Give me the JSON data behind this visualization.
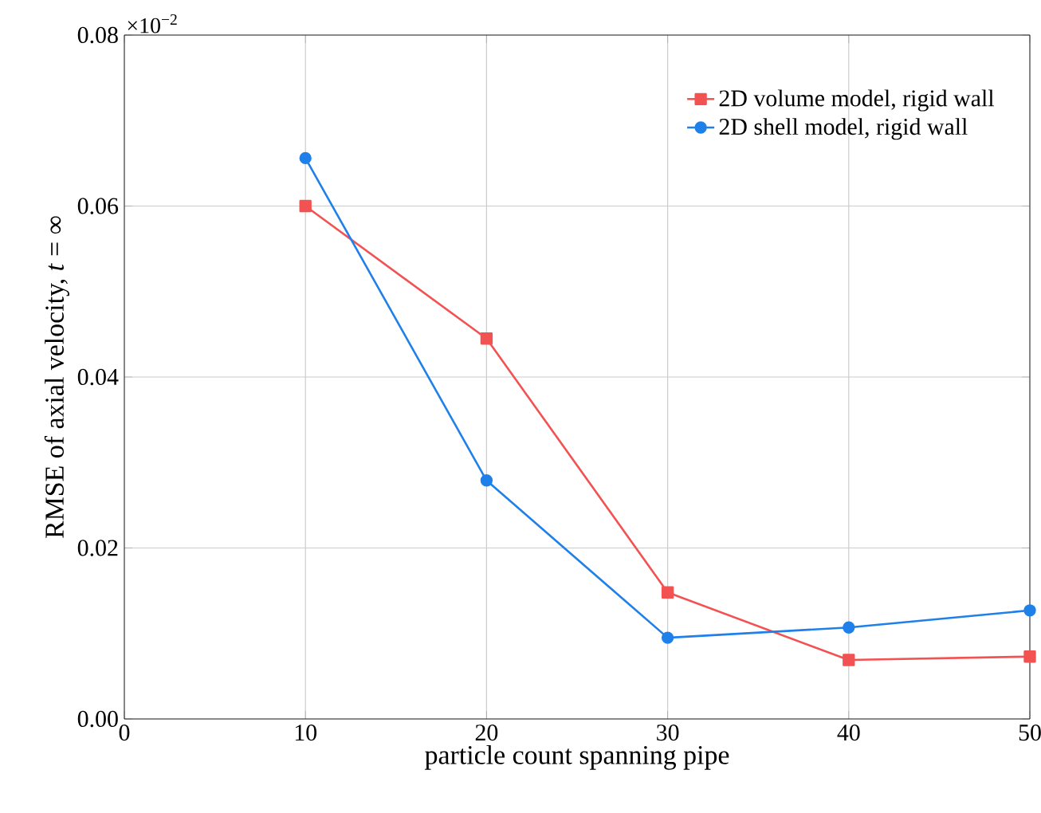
{
  "chart_data": {
    "type": "line",
    "xlabel": "particle count spanning pipe",
    "ylabel": "RMSE of axial velocity, *t* = ∞",
    "annotations": [
      "×10$^{−2}$"
    ],
    "x": [
      10,
      20,
      30,
      40,
      50
    ],
    "series": [
      {
        "name": "2D volume model, rigid wall",
        "color": "#f25252",
        "marker": "square",
        "values": [
          0.06,
          0.0445,
          0.0148,
          0.0069,
          0.0073
        ]
      },
      {
        "name": "2D shell model, rigid wall",
        "color": "#1f80ea",
        "marker": "circle",
        "values": [
          0.0656,
          0.0279,
          0.0095,
          0.0107,
          0.0127
        ]
      }
    ],
    "xlim": [
      0,
      50
    ],
    "ylim": [
      0,
      0.08
    ],
    "xticks": [
      0,
      10,
      20,
      30,
      40,
      50
    ],
    "yticks": [
      {
        "value": 0,
        "label": "0.00"
      },
      {
        "value": 0.02,
        "label": "0.02"
      },
      {
        "value": 0.04,
        "label": "0.04"
      },
      {
        "value": 0.06,
        "label": "0.06"
      },
      {
        "value": 0.08,
        "label": "0.08"
      }
    ],
    "grid": true,
    "legend": "top right",
    "line_style": "solid"
  }
}
